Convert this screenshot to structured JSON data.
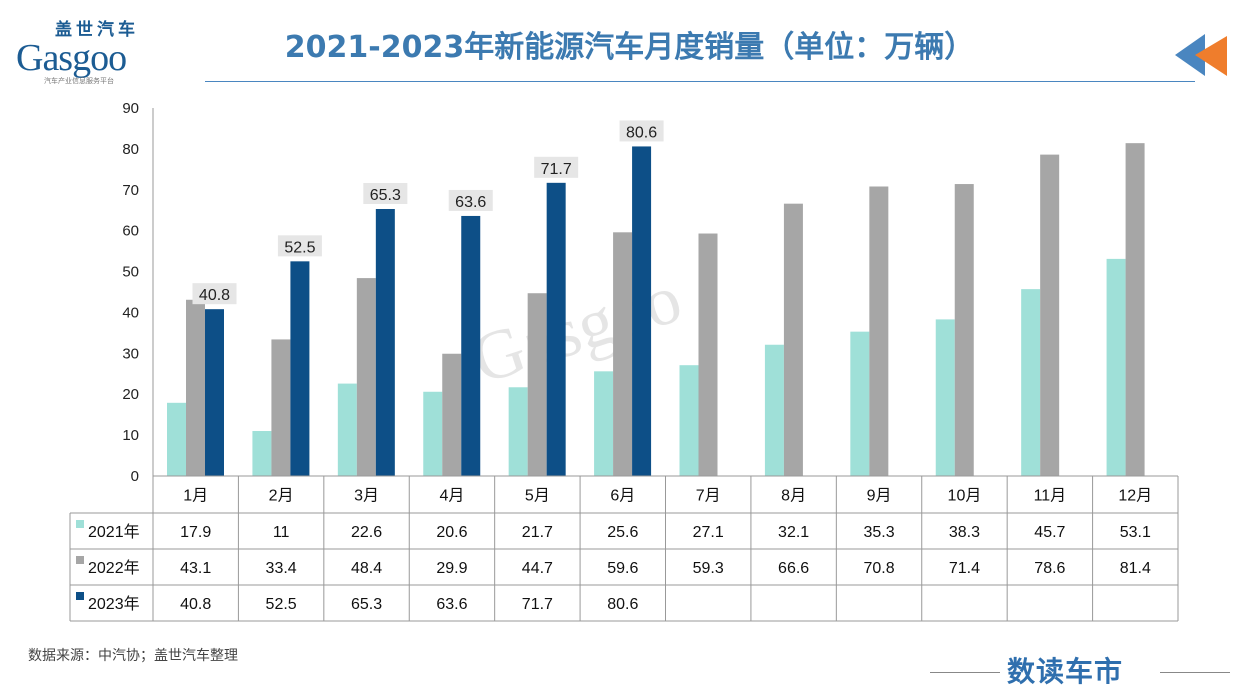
{
  "title": "2021-2023年新能源汽车月度销量（单位：万辆）",
  "logo": {
    "cn": "盖世汽车",
    "en": "Gasgoo",
    "sub": "汽车产业信息服务平台"
  },
  "source": "数据来源：中汽协；盖世汽车整理",
  "brand": "数读车市",
  "chart_data": {
    "type": "bar",
    "title": "2021-2023年新能源汽车月度销量（单位：万辆）",
    "categories": [
      "1月",
      "2月",
      "3月",
      "4月",
      "5月",
      "6月",
      "7月",
      "8月",
      "9月",
      "10月",
      "11月",
      "12月"
    ],
    "ylim": [
      0,
      90
    ],
    "yticks": [
      0,
      10,
      20,
      30,
      40,
      50,
      60,
      70,
      80,
      90
    ],
    "grid": false,
    "legend": "data-table",
    "series": [
      {
        "name": "2021年",
        "color": "#9fe0d8",
        "values": [
          17.9,
          11,
          22.6,
          20.6,
          21.7,
          25.6,
          27.1,
          32.1,
          35.3,
          38.3,
          45.7,
          53.1
        ]
      },
      {
        "name": "2022年",
        "color": "#a6a6a6",
        "values": [
          43.1,
          33.4,
          48.4,
          29.9,
          44.7,
          59.6,
          59.3,
          66.6,
          70.8,
          71.4,
          78.6,
          81.4
        ]
      },
      {
        "name": "2023年",
        "color": "#0d4f87",
        "values": [
          40.8,
          52.5,
          65.3,
          63.6,
          71.7,
          80.6,
          null,
          null,
          null,
          null,
          null,
          null
        ],
        "data_labels": true
      }
    ]
  }
}
